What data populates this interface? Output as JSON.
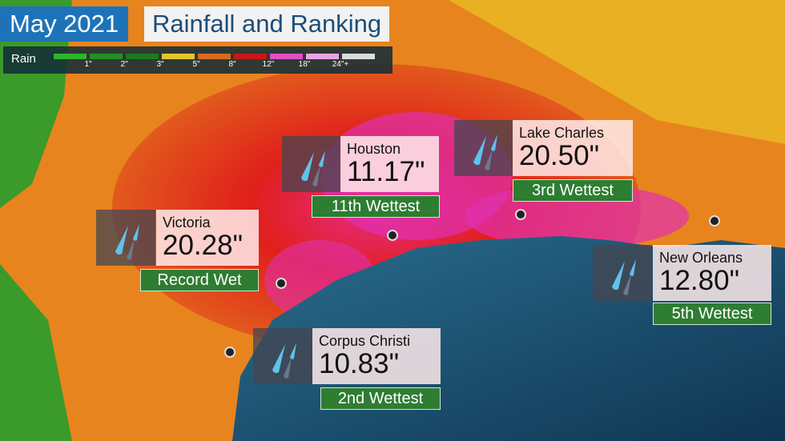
{
  "title": {
    "date": "May 2021",
    "subtitle": "Rainfall and Ranking"
  },
  "legend": {
    "label": "Rain",
    "colors": [
      "#2db52d",
      "#239023",
      "#1c7a1c",
      "#e3c52a",
      "#d96a1e",
      "#c81818",
      "#e04fc8",
      "#eaa5e4",
      "#dcdcdc"
    ],
    "ticks": [
      "1\"",
      "2\"",
      "3\"",
      "5\"",
      "8\"",
      "12\"",
      "18\"",
      "24\"+"
    ]
  },
  "cities": [
    {
      "name": "Houston",
      "value": "11.17\"",
      "rank": "11th Wettest"
    },
    {
      "name": "Victoria",
      "value": "20.28\"",
      "rank": "Record Wet"
    },
    {
      "name": "Lake Charles",
      "value": "20.50\"",
      "rank": "3rd Wettest"
    },
    {
      "name": "New Orleans",
      "value": "12.80\"",
      "rank": "5th Wettest"
    },
    {
      "name": "Corpus Christi",
      "value": "10.83\"",
      "rank": "2nd Wettest"
    }
  ],
  "icon": "rain-drops-icon"
}
